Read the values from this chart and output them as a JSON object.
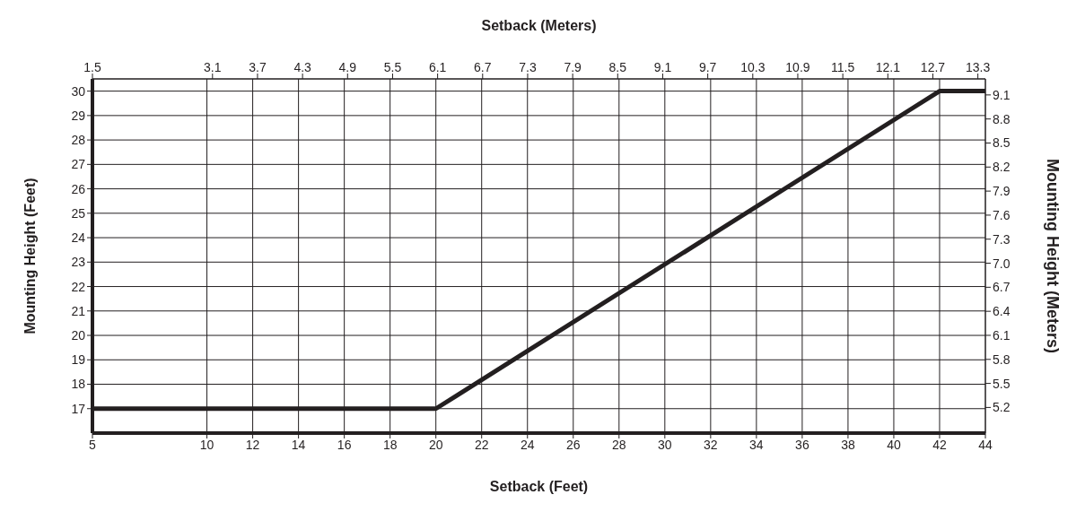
{
  "chart_data": {
    "type": "line",
    "xlabel": "Setback (Feet)",
    "x2label": "Setback (Meters)",
    "ylabel": "Mounting Height (Feet)",
    "y2label": "Mounting Height (Meters)",
    "x": [
      5,
      20,
      42,
      44
    ],
    "series": [
      {
        "color": "#231f20",
        "values": [
          17,
          17,
          30,
          30
        ]
      }
    ],
    "xlim": [
      5,
      44
    ],
    "xticks": [
      5,
      10,
      12,
      14,
      16,
      18,
      20,
      22,
      24,
      26,
      28,
      30,
      32,
      34,
      36,
      38,
      40,
      42,
      44
    ],
    "x2lim": [
      1.5,
      13.4
    ],
    "x2ticks": [
      1.5,
      3.1,
      3.7,
      4.3,
      4.9,
      5.5,
      6.1,
      6.7,
      7.3,
      7.9,
      8.5,
      9.1,
      9.7,
      10.3,
      10.9,
      11.5,
      12.1,
      12.7,
      13.3
    ],
    "ylim": [
      16,
      30.5
    ],
    "yticks": [
      17,
      18,
      19,
      20,
      21,
      22,
      23,
      24,
      25,
      26,
      27,
      28,
      29,
      30
    ],
    "y2lim": [
      4.88,
      9.3
    ],
    "y2ticks": [
      5.2,
      5.5,
      5.8,
      6.1,
      6.4,
      6.7,
      {
        "value": 7,
        "label": "7.0"
      },
      7.3,
      7.6,
      7.9,
      8.2,
      8.5,
      8.8,
      9.1
    ],
    "grid": true,
    "legend": false,
    "marker": "none",
    "line_style": "solid"
  }
}
